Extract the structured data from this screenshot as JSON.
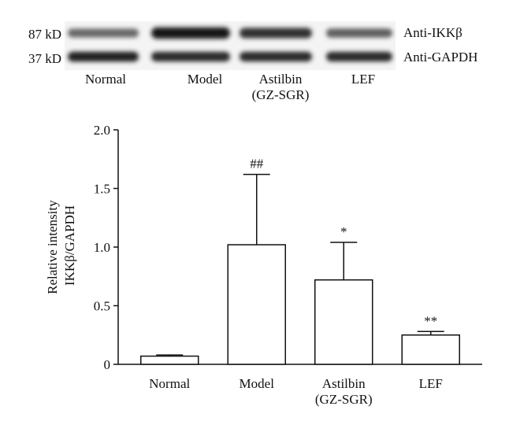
{
  "blot": {
    "rows": [
      {
        "marker": "87 kD",
        "antibody": "Anti-IKKβ"
      },
      {
        "marker": "37 kD",
        "antibody": "Anti-GAPDH"
      }
    ],
    "lanes": [
      {
        "line1": "Normal",
        "line2": ""
      },
      {
        "line1": "Model",
        "line2": ""
      },
      {
        "line1": "Astilbin",
        "line2": "(GZ-SGR)"
      },
      {
        "line1": "LEF",
        "line2": ""
      }
    ],
    "band_intensity": {
      "Anti-IKKβ": [
        0.55,
        1.0,
        0.85,
        0.6
      ],
      "Anti-GAPDH": [
        0.95,
        0.9,
        0.9,
        0.9
      ]
    }
  },
  "chart_data": {
    "type": "bar",
    "categories": [
      "Normal",
      "Model",
      "Astilbin\n(GZ-SGR)",
      "LEF"
    ],
    "values": [
      0.07,
      1.02,
      0.72,
      0.25
    ],
    "error": [
      0.01,
      0.6,
      0.32,
      0.03
    ],
    "significance": [
      "",
      "##",
      "*",
      "**"
    ],
    "ylabel_line1": "Relative intensity",
    "ylabel_line2": "IKKβ/GAPDH",
    "ylim": [
      0,
      2.0
    ],
    "yticks": [
      "0",
      "0.5",
      "1.0",
      "1.5",
      "2.0"
    ],
    "ytick_values": [
      0,
      0.5,
      1.0,
      1.5,
      2.0
    ],
    "bar_fill": "#ffffff",
    "bar_stroke": "#111111",
    "grid": false
  }
}
